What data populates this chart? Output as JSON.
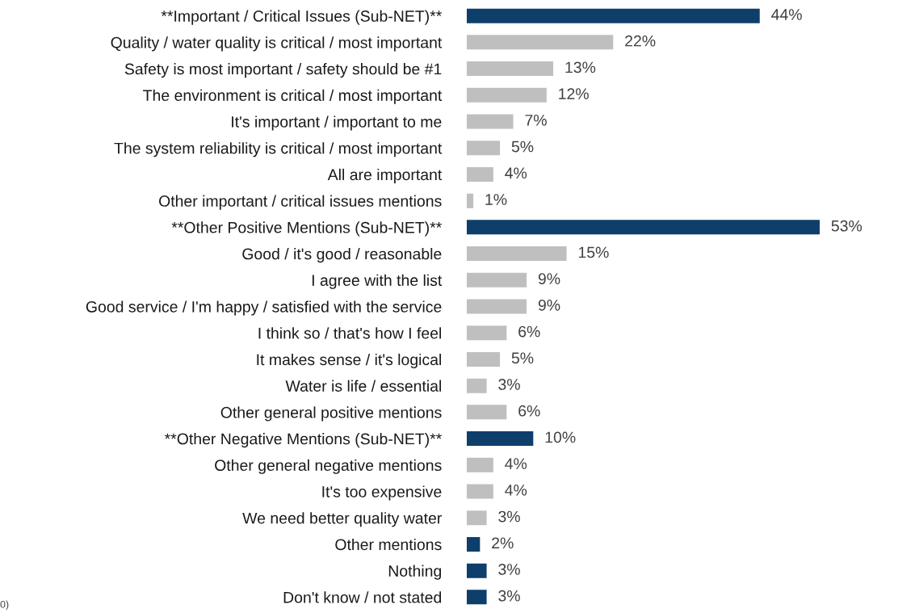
{
  "chart_data": {
    "type": "bar",
    "orientation": "horizontal",
    "categories": [
      "**Important / Critical Issues (Sub-NET)**",
      "Quality / water quality is critical / most important",
      "Safety is most important / safety should be #1",
      "The environment is critical / most important",
      "It's important / important to me",
      "The system reliability is critical / most important",
      "All are important",
      "Other important / critical issues mentions",
      "**Other Positive Mentions (Sub-NET)**",
      "Good / it's good / reasonable",
      "I agree with the list",
      "Good service / I'm happy / satisfied with the service",
      "I think so / that's how I feel",
      "It makes sense / it's logical",
      "Water is life / essential",
      "Other general positive mentions",
      "**Other Negative Mentions (Sub-NET)**",
      "Other general negative mentions",
      "It's too expensive",
      "We need better quality water",
      "Other mentions",
      "Nothing",
      "Don't know / not stated"
    ],
    "values": [
      44,
      22,
      13,
      12,
      7,
      5,
      4,
      1,
      53,
      15,
      9,
      9,
      6,
      5,
      3,
      6,
      10,
      4,
      4,
      3,
      2,
      3,
      3
    ],
    "colors": [
      "#0e3f6b",
      "#bfbfbf",
      "#bfbfbf",
      "#bfbfbf",
      "#bfbfbf",
      "#bfbfbf",
      "#bfbfbf",
      "#bfbfbf",
      "#0e3f6b",
      "#bfbfbf",
      "#bfbfbf",
      "#bfbfbf",
      "#bfbfbf",
      "#bfbfbf",
      "#bfbfbf",
      "#bfbfbf",
      "#0e3f6b",
      "#bfbfbf",
      "#bfbfbf",
      "#bfbfbf",
      "#0e3f6b",
      "#0e3f6b",
      "#0e3f6b"
    ],
    "value_labels": [
      "44%",
      "22%",
      "13%",
      "12%",
      "7%",
      "5%",
      "4%",
      "1%",
      "53%",
      "15%",
      "9%",
      "9%",
      "6%",
      "5%",
      "3%",
      "6%",
      "10%",
      "4%",
      "4%",
      "3%",
      "2%",
      "3%",
      "3%"
    ],
    "annotations": [
      "0)"
    ]
  }
}
